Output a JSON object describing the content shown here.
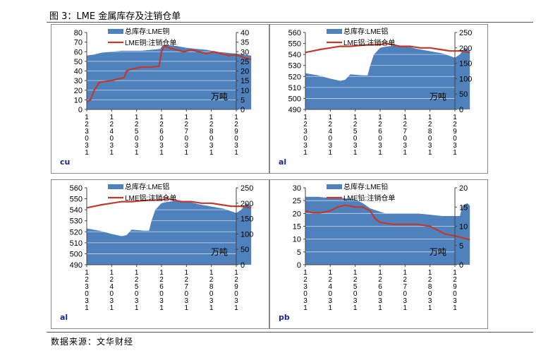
{
  "figure_title": "图 3：LME 金属库存及注销仓单",
  "source": "数据来源：文华财经",
  "chart_data": [
    {
      "type": "area+line",
      "panel_label": "cu",
      "unit_label": "万吨",
      "legend": [
        "总库存:LME铜",
        "LME铜:注销仓单"
      ],
      "x_labels": [
        "1\n2\n3\n0\n3\n1",
        "1\n2\n4\n0\n3\n1",
        "1\n2\n5\n0\n3\n1",
        "1\n2\n6\n0\n3\n1",
        "1\n2\n7\n0\n3\n1",
        "1\n2\n8\n0\n3\n1",
        "1\n2\n9\n0\n3\n1"
      ],
      "left_axis": {
        "min": 0,
        "max": 80,
        "ticks": [
          0,
          10,
          20,
          30,
          40,
          50,
          60,
          70,
          80
        ]
      },
      "right_axis": {
        "min": 0,
        "max": 40,
        "ticks": [
          0,
          5,
          10,
          15,
          20,
          25,
          30,
          35,
          40
        ]
      },
      "stock_series": [
        [
          0,
          56
        ],
        [
          0.3,
          57
        ],
        [
          0.6,
          59
        ],
        [
          1.0,
          60
        ],
        [
          1.4,
          61
        ],
        [
          1.8,
          61
        ],
        [
          2.2,
          61
        ],
        [
          2.6,
          62
        ],
        [
          2.95,
          63
        ],
        [
          3.05,
          67
        ],
        [
          3.3,
          67
        ],
        [
          3.6,
          66
        ],
        [
          4.0,
          64
        ],
        [
          4.4,
          63
        ],
        [
          4.8,
          62
        ],
        [
          5.2,
          60
        ],
        [
          5.6,
          59
        ],
        [
          6.0,
          58
        ],
        [
          6.3,
          57
        ],
        [
          6.6,
          56
        ]
      ],
      "cancel_series": [
        [
          0,
          4
        ],
        [
          0.15,
          5
        ],
        [
          0.3,
          10
        ],
        [
          0.5,
          14
        ],
        [
          0.7,
          14.5
        ],
        [
          1.0,
          15
        ],
        [
          1.3,
          16
        ],
        [
          1.5,
          16.5
        ],
        [
          1.6,
          20
        ],
        [
          1.8,
          21
        ],
        [
          2.2,
          22
        ],
        [
          2.6,
          22
        ],
        [
          2.9,
          22.5
        ],
        [
          3.0,
          30
        ],
        [
          3.1,
          33
        ],
        [
          3.3,
          32
        ],
        [
          3.6,
          31
        ],
        [
          3.9,
          30
        ],
        [
          4.2,
          31
        ],
        [
          4.5,
          30
        ],
        [
          4.8,
          29
        ],
        [
          5.1,
          30
        ],
        [
          5.4,
          29
        ],
        [
          5.7,
          28
        ],
        [
          6.0,
          28.5
        ],
        [
          6.3,
          27
        ],
        [
          6.6,
          26
        ]
      ]
    },
    {
      "type": "area+line",
      "panel_label": "al",
      "unit_label": "万吨",
      "legend": [
        "总库存:LME铝",
        "LME铝:注销仓单"
      ],
      "x_labels": [
        "1\n2\n3\n0\n3\n1",
        "1\n2\n4\n0\n3\n1",
        "1\n2\n5\n0\n3\n1",
        "1\n2\n6\n0\n3\n1",
        "1\n2\n7\n0\n3\n1",
        "1\n2\n8\n0\n3\n1",
        "1\n2\n9\n0\n3\n1"
      ],
      "left_axis": {
        "min": 490,
        "max": 560,
        "ticks": [
          490,
          500,
          510,
          520,
          530,
          540,
          550,
          560
        ]
      },
      "right_axis": {
        "min": 0,
        "max": 250,
        "ticks": [
          0,
          50,
          100,
          150,
          200,
          250
        ]
      },
      "stock_series": [
        [
          0,
          523
        ],
        [
          0.5,
          521
        ],
        [
          1.0,
          518
        ],
        [
          1.4,
          516
        ],
        [
          1.6,
          517
        ],
        [
          1.8,
          522
        ],
        [
          2.3,
          521
        ],
        [
          2.5,
          521
        ],
        [
          2.6,
          530
        ],
        [
          2.75,
          540
        ],
        [
          3.0,
          546
        ],
        [
          3.2,
          547
        ],
        [
          3.5,
          548
        ],
        [
          4.0,
          548
        ],
        [
          4.5,
          545
        ],
        [
          5.0,
          543
        ],
        [
          5.5,
          541
        ],
        [
          6.0,
          537
        ],
        [
          6.2,
          540
        ],
        [
          6.4,
          546
        ],
        [
          6.6,
          543
        ]
      ],
      "cancel_series": [
        [
          0,
          185
        ],
        [
          0.3,
          190
        ],
        [
          0.6,
          195
        ],
        [
          1.0,
          200
        ],
        [
          1.4,
          205
        ],
        [
          1.8,
          205
        ],
        [
          2.2,
          208
        ],
        [
          2.6,
          210
        ],
        [
          3.0,
          210
        ],
        [
          3.2,
          215
        ],
        [
          3.5,
          210
        ],
        [
          3.8,
          205
        ],
        [
          4.2,
          205
        ],
        [
          4.6,
          200
        ],
        [
          5.0,
          200
        ],
        [
          5.4,
          195
        ],
        [
          5.8,
          190
        ],
        [
          6.2,
          190
        ],
        [
          6.6,
          185
        ]
      ]
    },
    {
      "type": "area+line",
      "panel_label": "al",
      "unit_label": "万吨",
      "legend": [
        "总库存:LME铝",
        "LME铝:注销仓单"
      ],
      "x_labels": [
        "1\n2\n3\n0\n3\n1",
        "1\n2\n4\n0\n3\n1",
        "1\n2\n5\n0\n3\n1",
        "1\n2\n6\n0\n3\n1",
        "1\n2\n7\n0\n3\n1",
        "1\n2\n8\n0\n3\n1",
        "1\n2\n9\n0\n3\n1"
      ],
      "left_axis": {
        "min": 490,
        "max": 560,
        "ticks": [
          490,
          500,
          510,
          520,
          530,
          540,
          550,
          560
        ]
      },
      "right_axis": {
        "min": 0,
        "max": 250,
        "ticks": [
          0,
          50,
          100,
          150,
          200,
          250
        ]
      },
      "stock_series": [
        [
          0,
          523
        ],
        [
          0.5,
          521
        ],
        [
          1.0,
          518
        ],
        [
          1.4,
          516
        ],
        [
          1.6,
          517
        ],
        [
          1.8,
          522
        ],
        [
          2.3,
          521
        ],
        [
          2.5,
          521
        ],
        [
          2.6,
          530
        ],
        [
          2.75,
          540
        ],
        [
          3.0,
          546
        ],
        [
          3.2,
          547
        ],
        [
          3.5,
          548
        ],
        [
          4.0,
          548
        ],
        [
          4.5,
          545
        ],
        [
          5.0,
          543
        ],
        [
          5.5,
          541
        ],
        [
          6.0,
          537
        ],
        [
          6.2,
          540
        ],
        [
          6.4,
          546
        ],
        [
          6.6,
          543
        ]
      ],
      "cancel_series": [
        [
          0,
          185
        ],
        [
          0.3,
          190
        ],
        [
          0.6,
          195
        ],
        [
          1.0,
          200
        ],
        [
          1.4,
          205
        ],
        [
          1.8,
          205
        ],
        [
          2.2,
          208
        ],
        [
          2.6,
          210
        ],
        [
          3.0,
          210
        ],
        [
          3.2,
          215
        ],
        [
          3.5,
          210
        ],
        [
          3.8,
          205
        ],
        [
          4.2,
          205
        ],
        [
          4.6,
          200
        ],
        [
          5.0,
          200
        ],
        [
          5.4,
          195
        ],
        [
          5.8,
          190
        ],
        [
          6.2,
          190
        ],
        [
          6.6,
          185
        ]
      ]
    },
    {
      "type": "area+line",
      "panel_label": "pb",
      "unit_label": "万吨",
      "legend": [
        "总库存:LME铅",
        "LME铅:注销仓单"
      ],
      "x_labels": [
        "1\n2\n3\n0\n3\n1",
        "1\n2\n4\n0\n3\n1",
        "1\n2\n5\n0\n3\n1",
        "1\n2\n6\n0\n3\n1",
        "1\n2\n7\n0\n3\n1",
        "1\n2\n8\n0\n3\n1",
        "1\n2\n9\n0\n3\n1"
      ],
      "left_axis": {
        "min": 0,
        "max": 30,
        "ticks": [
          0,
          5,
          10,
          15,
          20,
          25,
          30
        ]
      },
      "right_axis": {
        "min": 0,
        "max": 20,
        "ticks": [
          0,
          5,
          10,
          15,
          20
        ]
      },
      "stock_series": [
        [
          0,
          26.5
        ],
        [
          0.5,
          26.5
        ],
        [
          1.0,
          26
        ],
        [
          1.5,
          26
        ],
        [
          2.0,
          25.5
        ],
        [
          2.3,
          24
        ],
        [
          2.6,
          22
        ],
        [
          2.9,
          21
        ],
        [
          3.2,
          20
        ],
        [
          3.6,
          20
        ],
        [
          4.0,
          20
        ],
        [
          4.5,
          20
        ],
        [
          5.0,
          19.5
        ],
        [
          5.5,
          19
        ],
        [
          6.0,
          19
        ],
        [
          6.2,
          19
        ],
        [
          6.3,
          23
        ],
        [
          6.5,
          24
        ],
        [
          6.6,
          23
        ]
      ],
      "cancel_series": [
        [
          0,
          14
        ],
        [
          0.3,
          13.5
        ],
        [
          0.6,
          13.5
        ],
        [
          1.0,
          14
        ],
        [
          1.3,
          15
        ],
        [
          1.6,
          15.5
        ],
        [
          2.0,
          15
        ],
        [
          2.3,
          15
        ],
        [
          2.6,
          14
        ],
        [
          2.8,
          12
        ],
        [
          3.0,
          11
        ],
        [
          3.5,
          10.5
        ],
        [
          4.0,
          10.5
        ],
        [
          4.5,
          10.5
        ],
        [
          5.0,
          10
        ],
        [
          5.3,
          9
        ],
        [
          5.6,
          8
        ],
        [
          6.0,
          7.5
        ],
        [
          6.3,
          7
        ],
        [
          6.6,
          6.5
        ]
      ]
    }
  ]
}
